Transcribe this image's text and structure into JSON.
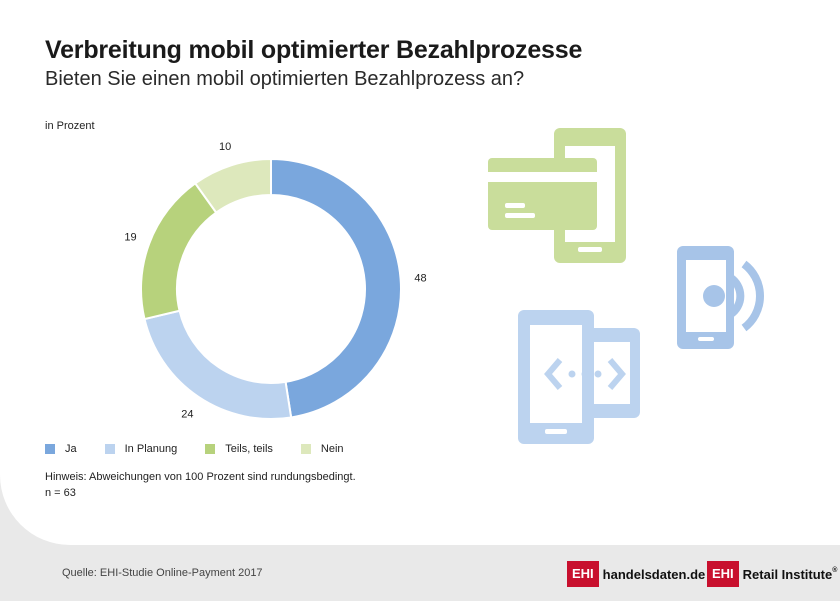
{
  "header": {
    "title": "Verbreitung mobil optimierter Bezahlprozesse",
    "subtitle": "Bieten Sie einen mobil optimierten Bezahlprozess an?",
    "unit_label": "in Prozent"
  },
  "chart_data": {
    "type": "pie",
    "style": "donut",
    "categories": [
      "Ja",
      "In Planung",
      "Teils, teils",
      "Nein"
    ],
    "values": [
      48,
      24,
      19,
      10
    ],
    "colors": [
      "#7aa7dd",
      "#bcd3ef",
      "#b7d27c",
      "#dde8bc"
    ],
    "legend_position": "bottom-left"
  },
  "notes": {
    "line1": "Hinweis: Abweichungen von 100 Prozent sind rundungsbedingt.",
    "line2": "n = 63"
  },
  "footer": {
    "source": "Quelle: EHI-Studie Online-Payment 2017",
    "brand1_box": "EHI",
    "brand1_text": "handelsdaten.de",
    "brand2_box": "EHI",
    "brand2_text": "Retail Institute",
    "brand2_reg": "®"
  },
  "icons": [
    "credit-card-phone-icon",
    "nfc-phone-icon",
    "code-phone-icon"
  ]
}
